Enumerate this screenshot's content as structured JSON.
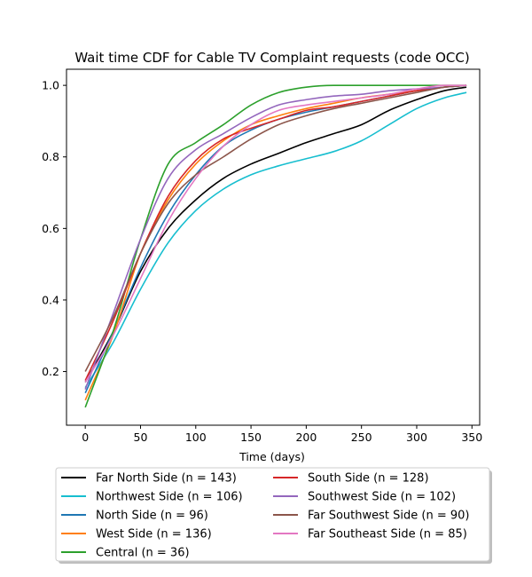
{
  "chart_data": {
    "type": "line",
    "title": "Wait time CDF for Cable TV Complaint  requests (code OCC)",
    "xlabel": "Time (days)",
    "ylabel": "",
    "xlim": [
      -17,
      357
    ],
    "ylim": [
      0.05,
      1.045
    ],
    "xticks": [
      0,
      50,
      100,
      150,
      200,
      250,
      300,
      350
    ],
    "yticks": [
      0.2,
      0.4,
      0.6,
      0.8,
      1.0
    ],
    "xtick_labels": [
      "0",
      "50",
      "100",
      "150",
      "200",
      "250",
      "300",
      "350"
    ],
    "ytick_labels": [
      "0.2",
      "0.4",
      "0.6",
      "0.8",
      "1.0"
    ],
    "grid": false,
    "legend_position": "below",
    "legend_columns": 2,
    "series": [
      {
        "name": "Far North Side (n = 143)",
        "color": "#000000",
        "x": [
          0,
          25,
          50,
          75,
          100,
          125,
          150,
          175,
          200,
          225,
          250,
          275,
          300,
          325,
          345
        ],
        "y": [
          0.17,
          0.31,
          0.48,
          0.6,
          0.68,
          0.74,
          0.78,
          0.81,
          0.84,
          0.865,
          0.89,
          0.93,
          0.96,
          0.985,
          0.995
        ]
      },
      {
        "name": "Northwest Side (n = 106)",
        "color": "#17becf",
        "x": [
          0,
          25,
          50,
          75,
          100,
          125,
          150,
          175,
          200,
          225,
          250,
          275,
          300,
          325,
          345
        ],
        "y": [
          0.155,
          0.28,
          0.43,
          0.56,
          0.65,
          0.71,
          0.75,
          0.775,
          0.795,
          0.815,
          0.845,
          0.89,
          0.935,
          0.965,
          0.98
        ]
      },
      {
        "name": "North Side (n = 96)",
        "color": "#1f77b4",
        "x": [
          0,
          25,
          50,
          75,
          100,
          125,
          150,
          175,
          200,
          225,
          250,
          275,
          300,
          325,
          345
        ],
        "y": [
          0.14,
          0.31,
          0.49,
          0.64,
          0.75,
          0.83,
          0.875,
          0.905,
          0.925,
          0.94,
          0.955,
          0.97,
          0.985,
          0.995,
          1.0
        ]
      },
      {
        "name": "West Side (n = 136)",
        "color": "#ff7f0e",
        "x": [
          0,
          25,
          50,
          75,
          100,
          125,
          150,
          175,
          200,
          225,
          250,
          275,
          300,
          325,
          345
        ],
        "y": [
          0.12,
          0.3,
          0.53,
          0.68,
          0.78,
          0.845,
          0.89,
          0.915,
          0.935,
          0.95,
          0.965,
          0.975,
          0.985,
          0.995,
          1.0
        ]
      },
      {
        "name": "Central (n = 36)",
        "color": "#2ca02c",
        "x": [
          0,
          25,
          50,
          75,
          100,
          125,
          150,
          175,
          200,
          225,
          250,
          275,
          300,
          325,
          345
        ],
        "y": [
          0.1,
          0.31,
          0.57,
          0.78,
          0.84,
          0.89,
          0.945,
          0.98,
          0.995,
          1.0,
          1.0,
          1.0,
          1.0,
          1.0,
          1.0
        ]
      },
      {
        "name": "South Side (n = 128)",
        "color": "#d62728",
        "x": [
          0,
          25,
          50,
          75,
          100,
          125,
          150,
          175,
          200,
          225,
          250,
          275,
          300,
          325,
          345
        ],
        "y": [
          0.175,
          0.34,
          0.53,
          0.69,
          0.79,
          0.85,
          0.88,
          0.905,
          0.93,
          0.94,
          0.955,
          0.97,
          0.985,
          0.995,
          1.0
        ]
      },
      {
        "name": "Southwest Side (n = 102)",
        "color": "#9467bd",
        "x": [
          0,
          25,
          50,
          75,
          100,
          125,
          150,
          175,
          200,
          225,
          250,
          275,
          300,
          325,
          345
        ],
        "y": [
          0.15,
          0.36,
          0.57,
          0.74,
          0.82,
          0.865,
          0.91,
          0.945,
          0.96,
          0.97,
          0.975,
          0.985,
          0.99,
          0.995,
          1.0
        ]
      },
      {
        "name": "Far Southwest Side (n = 90)",
        "color": "#8c564b",
        "x": [
          0,
          25,
          50,
          75,
          100,
          125,
          150,
          175,
          200,
          225,
          250,
          275,
          300,
          325,
          345
        ],
        "y": [
          0.2,
          0.35,
          0.53,
          0.67,
          0.75,
          0.8,
          0.85,
          0.89,
          0.915,
          0.935,
          0.95,
          0.965,
          0.98,
          0.995,
          1.0
        ]
      },
      {
        "name": "Far Southeast Side (n = 85)",
        "color": "#e377c2",
        "x": [
          0,
          25,
          50,
          75,
          100,
          125,
          150,
          175,
          200,
          225,
          250,
          275,
          300,
          325,
          345
        ],
        "y": [
          0.17,
          0.3,
          0.46,
          0.62,
          0.74,
          0.83,
          0.89,
          0.93,
          0.945,
          0.955,
          0.965,
          0.975,
          0.99,
          1.0,
          1.0
        ]
      }
    ]
  }
}
